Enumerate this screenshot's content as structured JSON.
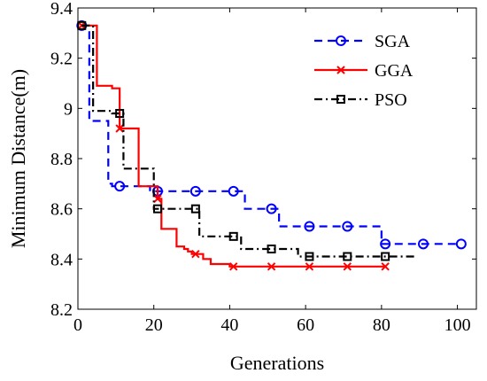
{
  "chart_data": {
    "type": "line",
    "xlabel": "Generations",
    "ylabel": "Minimum Distance(m)",
    "xlim": [
      0,
      105
    ],
    "ylim": [
      8.2,
      9.4
    ],
    "xticks": [
      0,
      20,
      40,
      60,
      80,
      100
    ],
    "yticks": [
      8.2,
      8.4,
      8.6,
      8.8,
      9.0,
      9.2,
      9.4
    ],
    "xtick_labels": [
      "0",
      "20",
      "40",
      "60",
      "80",
      "100"
    ],
    "ytick_labels": [
      "8.2",
      "8.4",
      "8.6",
      "8.8",
      "9",
      "9.2",
      "9.4"
    ],
    "grid": false,
    "legend_position": "top-right",
    "series": [
      {
        "name": "SGA",
        "color": "#0000ff",
        "line_style": "dashed",
        "marker": "circle",
        "marker_x": [
          1,
          11,
          21,
          31,
          41,
          51,
          61,
          71,
          81,
          91,
          101
        ],
        "x": [
          1,
          3,
          3,
          8,
          8,
          9,
          9,
          19,
          19,
          44,
          44,
          53,
          53,
          80,
          80,
          101
        ],
        "y": [
          9.33,
          9.33,
          8.95,
          8.95,
          8.7,
          8.7,
          8.69,
          8.69,
          8.67,
          8.67,
          8.6,
          8.6,
          8.53,
          8.53,
          8.46,
          8.46
        ]
      },
      {
        "name": "GGA",
        "color": "#ff0000",
        "line_style": "solid",
        "marker": "x",
        "marker_x": [
          1,
          11,
          21,
          31,
          41,
          51,
          61,
          71,
          81
        ],
        "x": [
          1,
          5,
          5,
          9,
          9,
          11,
          11,
          16,
          16,
          21,
          21,
          22,
          22,
          26,
          26,
          28,
          28,
          29,
          29,
          30,
          30,
          33,
          33,
          35,
          35,
          40,
          40,
          55,
          55,
          81
        ],
        "y": [
          9.33,
          9.33,
          9.09,
          9.09,
          9.08,
          9.08,
          8.92,
          8.92,
          8.69,
          8.69,
          8.64,
          8.64,
          8.52,
          8.52,
          8.45,
          8.45,
          8.44,
          8.44,
          8.43,
          8.43,
          8.42,
          8.42,
          8.4,
          8.4,
          8.38,
          8.38,
          8.37,
          8.37,
          8.37,
          8.37
        ]
      },
      {
        "name": "PSO",
        "color": "#000000",
        "line_style": "dashdot",
        "marker": "square",
        "marker_x": [
          1,
          11,
          21,
          31,
          41,
          51,
          61,
          71,
          81
        ],
        "x": [
          1,
          4,
          4,
          9,
          9,
          12,
          12,
          20,
          20,
          32,
          32,
          43,
          43,
          58,
          58,
          89
        ],
        "y": [
          9.33,
          9.33,
          8.99,
          8.99,
          8.98,
          8.98,
          8.76,
          8.76,
          8.6,
          8.6,
          8.49,
          8.49,
          8.44,
          8.44,
          8.41,
          8.41
        ]
      }
    ]
  }
}
